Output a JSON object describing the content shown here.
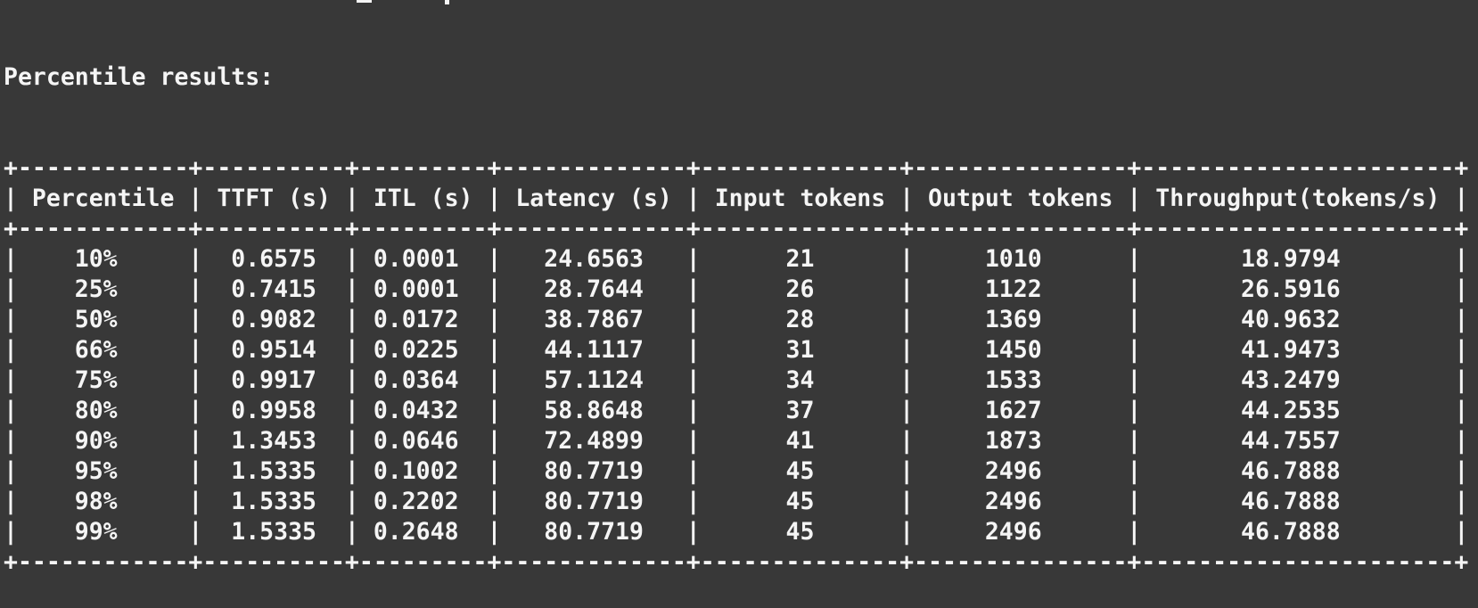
{
  "terminal": {
    "bg_color": "#383838",
    "text_color": "#f5f5f5",
    "title_line": "Percentile results:"
  },
  "table": {
    "columns": [
      {
        "label": "Percentile",
        "width": 12
      },
      {
        "label": "TTFT (s)",
        "width": 10
      },
      {
        "label": "ITL (s)",
        "width": 9
      },
      {
        "label": "Latency (s)",
        "width": 13
      },
      {
        "label": "Input tokens",
        "width": 14
      },
      {
        "label": "Output tokens",
        "width": 15
      },
      {
        "label": "Throughput(tokens/s)",
        "width": 22
      }
    ],
    "rows": [
      [
        "10%",
        "0.6575",
        "0.0001",
        "24.6563",
        "21",
        "1010",
        "18.9794"
      ],
      [
        "25%",
        "0.7415",
        "0.0001",
        "28.7644",
        "26",
        "1122",
        "26.5916"
      ],
      [
        "50%",
        "0.9082",
        "0.0172",
        "38.7867",
        "28",
        "1369",
        "40.9632"
      ],
      [
        "66%",
        "0.9514",
        "0.0225",
        "44.1117",
        "31",
        "1450",
        "41.9473"
      ],
      [
        "75%",
        "0.9917",
        "0.0364",
        "57.1124",
        "34",
        "1533",
        "43.2479"
      ],
      [
        "80%",
        "0.9958",
        "0.0432",
        "58.8648",
        "37",
        "1627",
        "44.2535"
      ],
      [
        "90%",
        "1.3453",
        "0.0646",
        "72.4899",
        "41",
        "1873",
        "44.7557"
      ],
      [
        "95%",
        "1.5335",
        "0.1002",
        "80.7719",
        "45",
        "2496",
        "46.7888"
      ],
      [
        "98%",
        "1.5335",
        "0.2202",
        "80.7719",
        "45",
        "2496",
        "46.7888"
      ],
      [
        "99%",
        "1.5335",
        "0.2648",
        "80.7719",
        "45",
        "2496",
        "46.7888"
      ]
    ]
  }
}
